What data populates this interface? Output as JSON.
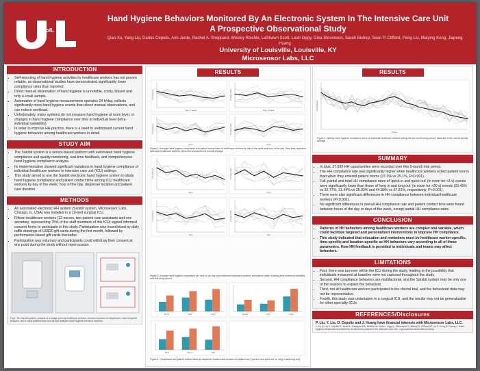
{
  "header": {
    "logo_text": "UofL",
    "title_line1": "Hand Hygiene Behaviors Monitored By An Electronic System In The Intensive Care Unit",
    "title_line2": "A Prospective Observational Study",
    "authors": "Qian Xu, Yang Liu, Darius Cepulis, Ann Jerde, Rachel A. Sheppard, Wesley Reichle, LaShawn Scott, Leah Oppy, Gina Stevenson, Sarah Bishop, Sean P. Clifford, Peng Liu, Maiying Kong, Jiapeng Huang",
    "institution": "University of Louisville, Louisville, KY",
    "lab": "Microsensor Labs, LLC"
  },
  "introduction": {
    "heading": "INTRODUCTION",
    "bullets": [
      "Self-reporting of hand hygiene activities by healthcare workers has not proven reliable, as observational studies have demonstrated significantly lower compliance rates than reported.",
      "Direct manual observation of hand hygiene is unreliable, costly, biased and only a small sample.",
      "Automation of hand hygiene measurements operates 24 h/day, collects significantly more hand hygiene events than direct manual observations, and can reduce workload.",
      "Unfortunately, many systems do not measure hand hygiene at room level, or changes in hand hygiene compliance over time at individual level (intra-individual variability).",
      "In order to improve HH practice, there is a need to understand current hand hygiene behaviors among healthcare workers in detail."
    ]
  },
  "study_aim": {
    "heading": "STUDY AIM",
    "bullets": [
      "The Sanibit system is a sensor-based platform with automated hand hygiene compliance and quality monitoring, real-time feedback, and comprehensive hand hygiene compliance analysis.",
      "Its implementation showed significant variations in hand hygiene compliance of individual healthcare workers in intensive care unit (ICU) settings.",
      "This study aimed to use the Sanibit electronic hand hygiene system to study hand hygiene compliance and patient contact time among ICU healthcare workers by day of the week, hour of the day, dispenser location and patient care duration."
    ]
  },
  "methods": {
    "heading": "METHODS",
    "bullets": [
      "An automated electronic HH system (Sanibit system, Microsensor Labs, Chicago, IL, USA) was installed in a 10-bed surgical ICU.",
      "Fifteen healthcare workers (12 nurses, two patient care assistants and one secretary, representing 75% of the staff members of this ICU) signed informed consent forms to participate in this study. Participation was incentivized by daily raffle drawings of US$20 gift cards during the first month, followed by performance-based gift cards thereafter.",
      "Participation was voluntary and participants could withdraw their consent at any point during the study without repercussion."
    ],
    "figure_caption": "Fig 1. The Sanibit system consists of a badge worn by healthcare workers, sensors mounted on dispensers, room entry/exit beacons, and a cloud platform that records and analyzes hand hygiene events in real time."
  },
  "results_center": {
    "heading": "RESULTS",
    "figure2_caption": "Figure 2. Average hand hygiene compliance and patient contact time of healthcare workers by day of the week and hour of the day. Grey lines represent individual healthcare workers; black line represents the overall average.",
    "figure3_caption": "Figure 3. Average hand hygiene compliance per hour or per day and individual healthcare workers' compliance rates, showing intra-individual variability over the study period.",
    "figure4_caption": "Figure 4. Compliance and patient contact times by dispenser location and duration of patient care ('quick in and quick out' vs 'long in and long out')."
  },
  "results_right": {
    "heading": "RESULTS",
    "figure_caption": "Figure 4. Weekly hand hygiene compliance trend of individual healthcare workers during the six-month study period; black line is the overall weekly average."
  },
  "summary": {
    "heading": "SUMMARY",
    "bullets": [
      "In total, 27,692 HH opportunities were recorded over this 6-month trial period.",
      "The HH compliance rate was significantly higher when healthcare workers exited patient rooms than when they entered patient rooms (37.3% vs 25.1%, P<0.001).",
      "Full, partial and total HH compliance rates of 'quick in and quick out' (in room for <3 s) events were significantly lower than those of 'long in and long out' (in room for >30 s) events (23.45% vs 32.77%, 21.44% vs 35.03% and 44.89% vs 67.81%, respectively; P<0.001).",
      "There were also significant differences in HH compliance between individual healthcare workers (P<0.001).",
      "No significant differences in overall HH compliance rate and patient contact time were found between hours of the day or days of the week, except partial HH compliance rates."
    ]
  },
  "conclusion": {
    "heading": "CONCLUSION",
    "bullets": [
      "Patterns of HH behaviors among healthcare workers are complex and variable, which could facilitate targeted and personalized interventions to improve HH compliance.",
      "This study indicated that education and reminders must be healthcare worker-specific, time-specific and location-specific as HH behaviors vary according to all of these parameters. How HH feedback is provided to individuals and teams may affect behaviors."
    ]
  },
  "limitations": {
    "heading": "LIMITATIONS",
    "bullets": [
      "First, there was turnover within the ICU during the study, leading to the possibility that individuals measured at baseline were not captured throughout the study.",
      "Second, HH compliance behaviors are multifactorial, and the Sanibit system may be only one of the reasons to explain the behaviors.",
      "Third, not all healthcare workers participated in the clinical trial, and the behavioral data may not be representative.",
      "Fourth, this study was undertaken in a surgical ICU, and the results may not be generalizable for other specialty ICUs."
    ]
  },
  "references": {
    "heading": "REFERENCES/Disclosures",
    "disclosure": "P. Liu, Y. Liu, D. Cepulis and J. Huang have financial interests with Microsensor Labs, LLC.",
    "citation": "1. Xu Q, Liu Y, Cepulis D, Jerde A, Sheppard RA, Reichle W, Scott L, Oppy L, Stevenson G, Bishop S, Clifford SP, Liu P, Kong M, Huang J. Hand hygiene behaviours monitored by an electronic system in the intensive care unit - a prospective observational study."
  },
  "colors": {
    "brand_red": "#b3232a",
    "bar_teal": "#2f9bb0",
    "bar_orange": "#e07a55",
    "line_black": "#222222",
    "line_grey": "#b9b9b9"
  },
  "chart_data": [
    {
      "type": "line",
      "title": "",
      "x": [
        1,
        2,
        3,
        4,
        5,
        6,
        7
      ],
      "series": [
        {
          "name": "Average",
          "values": [
            0.32,
            0.3,
            0.28,
            0.29,
            0.27,
            0.26,
            0.28
          ]
        }
      ],
      "xlabel": "Day of week",
      "ylabel": "Compliance"
    },
    {
      "type": "line",
      "title": "",
      "x": [
        1,
        2,
        3,
        4,
        5,
        6,
        7
      ],
      "series": [
        {
          "name": "Average",
          "values": [
            0.2,
            0.19,
            0.21,
            0.18,
            0.19,
            0.2,
            0.18
          ]
        }
      ],
      "xlabel": "Day of week",
      "ylabel": "Contact time"
    },
    {
      "type": "line",
      "title": "",
      "x": [
        1,
        2,
        3,
        4,
        5,
        6,
        7,
        8
      ],
      "series": [
        {
          "name": "Average",
          "values": [
            0.3,
            0.27,
            0.29,
            0.26,
            0.28,
            0.25,
            0.27,
            0.29
          ]
        }
      ],
      "xlabel": "Hour",
      "ylabel": "Compliance"
    },
    {
      "type": "line",
      "title": "",
      "x": [
        1,
        2,
        3,
        4,
        5,
        6,
        7,
        8
      ],
      "series": [
        {
          "name": "Average",
          "values": [
            0.22,
            0.24,
            0.23,
            0.21,
            0.25,
            0.24,
            0.22,
            0.23
          ]
        }
      ],
      "xlabel": "Hour",
      "ylabel": "Contact time"
    },
    {
      "type": "line",
      "title": "",
      "x": [
        1,
        2,
        3,
        4,
        5,
        6,
        7,
        8
      ],
      "series": [
        {
          "name": "Average",
          "values": [
            0.35,
            0.31,
            0.33,
            0.28,
            0.3,
            0.27,
            0.29,
            0.26
          ]
        }
      ],
      "xlabel": "Hour",
      "ylabel": "Compliance"
    },
    {
      "type": "line",
      "title": "",
      "x": [
        1,
        2,
        3,
        4,
        5,
        6,
        7,
        8
      ],
      "series": [
        {
          "name": "Average",
          "values": [
            0.25,
            0.28,
            0.24,
            0.27,
            0.23,
            0.26,
            0.25,
            0.24
          ]
        }
      ],
      "xlabel": "Hour",
      "ylabel": "Contact time"
    },
    {
      "type": "line",
      "title": "",
      "x": [
        1,
        2,
        3,
        4,
        5,
        6,
        7,
        8
      ],
      "series": [
        {
          "name": "Average",
          "values": [
            0.31,
            0.29,
            0.3,
            0.27,
            0.28,
            0.3,
            0.26,
            0.27
          ]
        }
      ],
      "xlabel": "Day",
      "ylabel": "Compliance"
    },
    {
      "type": "line",
      "title": "",
      "x": [
        1,
        2,
        3,
        4,
        5,
        6,
        7,
        8
      ],
      "series": [
        {
          "name": "Average",
          "values": [
            0.24,
            0.22,
            0.25,
            0.23,
            0.21,
            0.24,
            0.22,
            0.23
          ]
        }
      ],
      "xlabel": "Day",
      "ylabel": "Contact time"
    },
    {
      "type": "bar",
      "title": "",
      "categories": [
        "Entry",
        "Exit",
        "Total"
      ],
      "series": [
        {
          "name": "Quick in/out",
          "values": [
            0.18,
            0.26,
            0.22
          ]
        },
        {
          "name": "Long in/out",
          "values": [
            0.3,
            0.38,
            0.42
          ]
        }
      ],
      "ylim": [
        0,
        0.5
      ]
    },
    {
      "type": "bar",
      "title": "",
      "categories": [
        "Partial",
        "Full",
        "Total"
      ],
      "series": [
        {
          "name": "Quick in/out",
          "values": [
            0.21,
            0.23,
            0.45
          ]
        },
        {
          "name": "Long in/out",
          "values": [
            0.35,
            0.33,
            0.68
          ]
        }
      ],
      "ylim": [
        0,
        0.8
      ]
    },
    {
      "type": "bar",
      "title": "",
      "categories": [
        "Bed",
        "Room",
        "Hall"
      ],
      "series": [
        {
          "name": "Quick in/out",
          "values": [
            0.2,
            0.24,
            0.19
          ]
        },
        {
          "name": "Long in/out",
          "values": [
            0.36,
            0.4,
            0.44
          ]
        }
      ],
      "ylim": [
        0,
        0.5
      ]
    },
    {
      "type": "line",
      "title": "",
      "x": [
        1,
        2,
        3,
        4,
        5,
        6,
        7,
        8,
        9,
        10,
        11,
        12,
        13,
        14,
        15,
        16,
        17,
        18,
        19,
        20,
        21,
        22,
        23,
        24,
        25
      ],
      "series": [
        {
          "name": "Average",
          "values": [
            0.45,
            0.42,
            0.4,
            0.38,
            0.37,
            0.38,
            0.36,
            0.35,
            0.37,
            0.38,
            0.39,
            0.41,
            0.42,
            0.4,
            0.37,
            0.36,
            0.34,
            0.33,
            0.32,
            0.31,
            0.3,
            0.28,
            0.27,
            0.26,
            0.25
          ]
        }
      ],
      "xlabel": "Week",
      "ylabel": "Compliance"
    }
  ]
}
